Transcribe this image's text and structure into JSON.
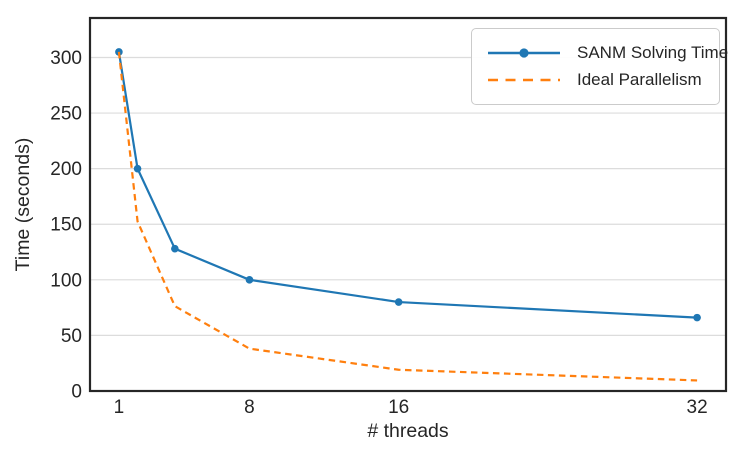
{
  "chart_data": {
    "type": "line",
    "title": "",
    "xlabel": "# threads",
    "ylabel": "Time (seconds)",
    "x": [
      1,
      2,
      4,
      8,
      16,
      32
    ],
    "series": [
      {
        "name": "SANM Solving Time",
        "values": [
          305,
          200,
          128,
          100,
          80,
          66
        ],
        "color": "#1f77b4",
        "style": "solid",
        "marker": "circle"
      },
      {
        "name": "Ideal Parallelism",
        "values": [
          305,
          152.5,
          76.3,
          38.1,
          19.1,
          9.5
        ],
        "color": "#ff7f0e",
        "style": "dashed",
        "marker": "none"
      }
    ],
    "xticks": [
      1,
      8,
      16,
      32
    ],
    "yticks": [
      0,
      50,
      100,
      150,
      200,
      250,
      300
    ],
    "xlim": [
      -0.55,
      33.55
    ],
    "ylim": [
      0,
      335.5
    ],
    "grid": "y",
    "legend_position": "upper right"
  },
  "colors": {
    "grid": "#dcdcdc",
    "spine": "#262626",
    "text": "#262626",
    "legend_border": "#cbcbcb",
    "background": "#ffffff"
  }
}
